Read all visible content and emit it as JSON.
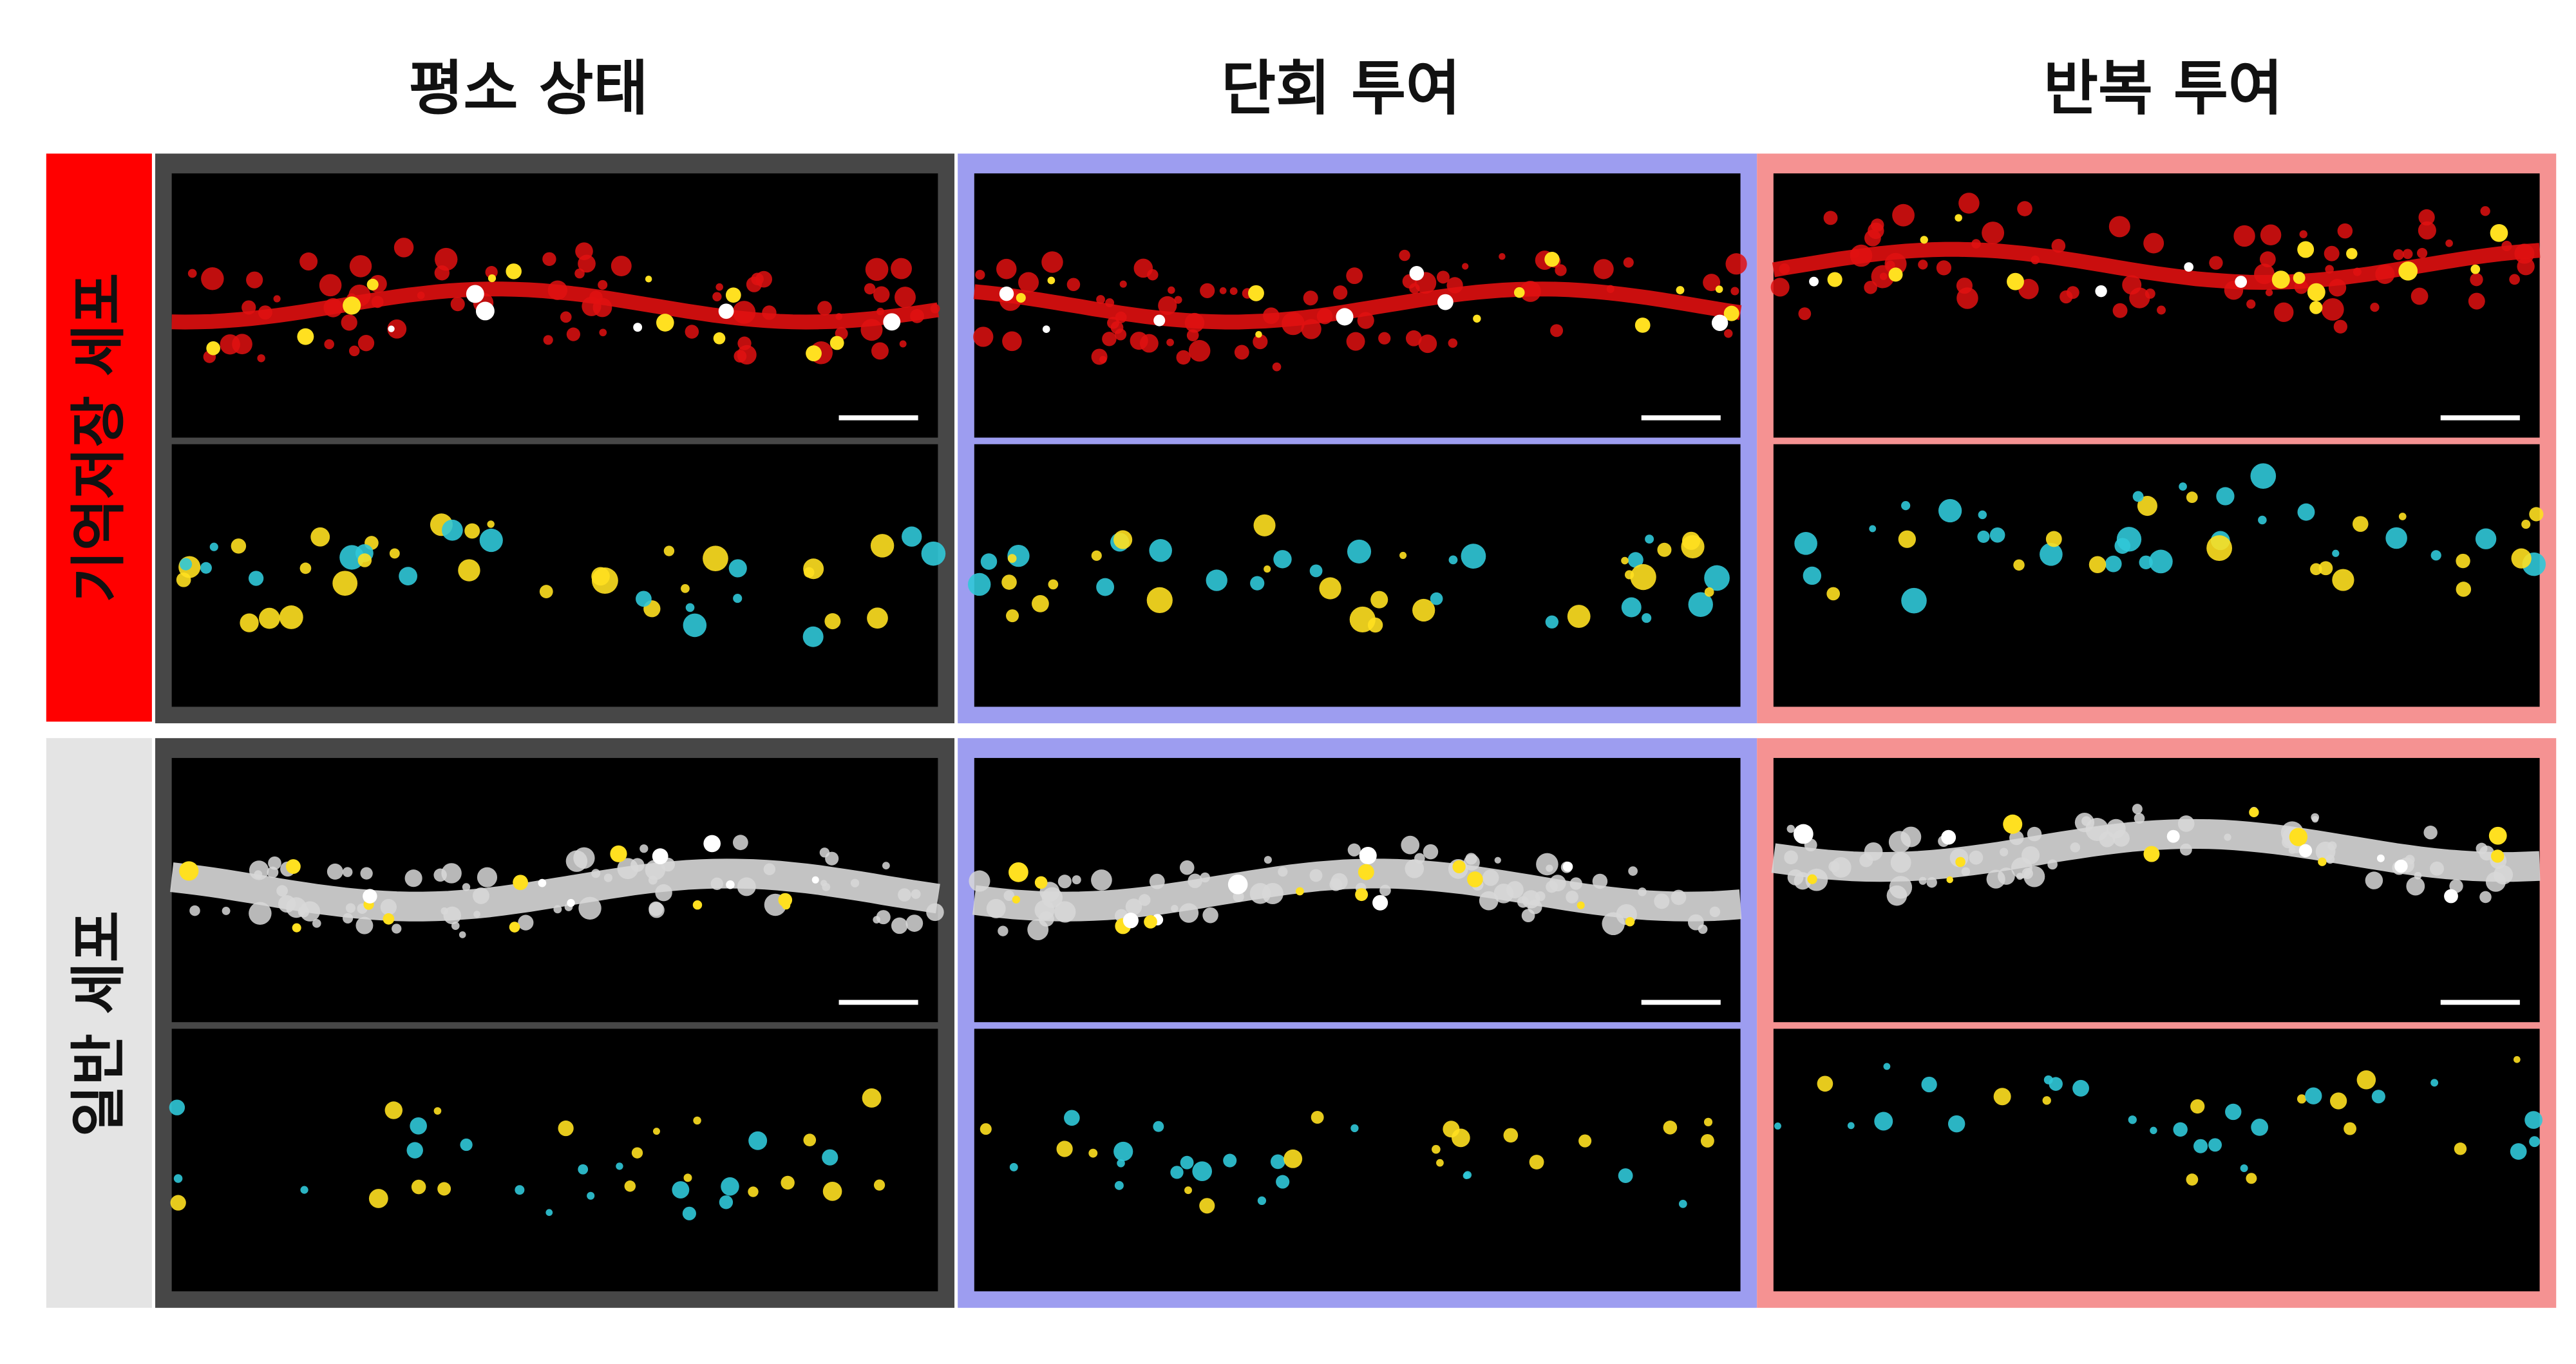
{
  "columns": [
    "평소 상태",
    "단회 투여",
    "반복 투여"
  ],
  "rows": [
    "기억저장 세포",
    "일반 세포"
  ]
}
